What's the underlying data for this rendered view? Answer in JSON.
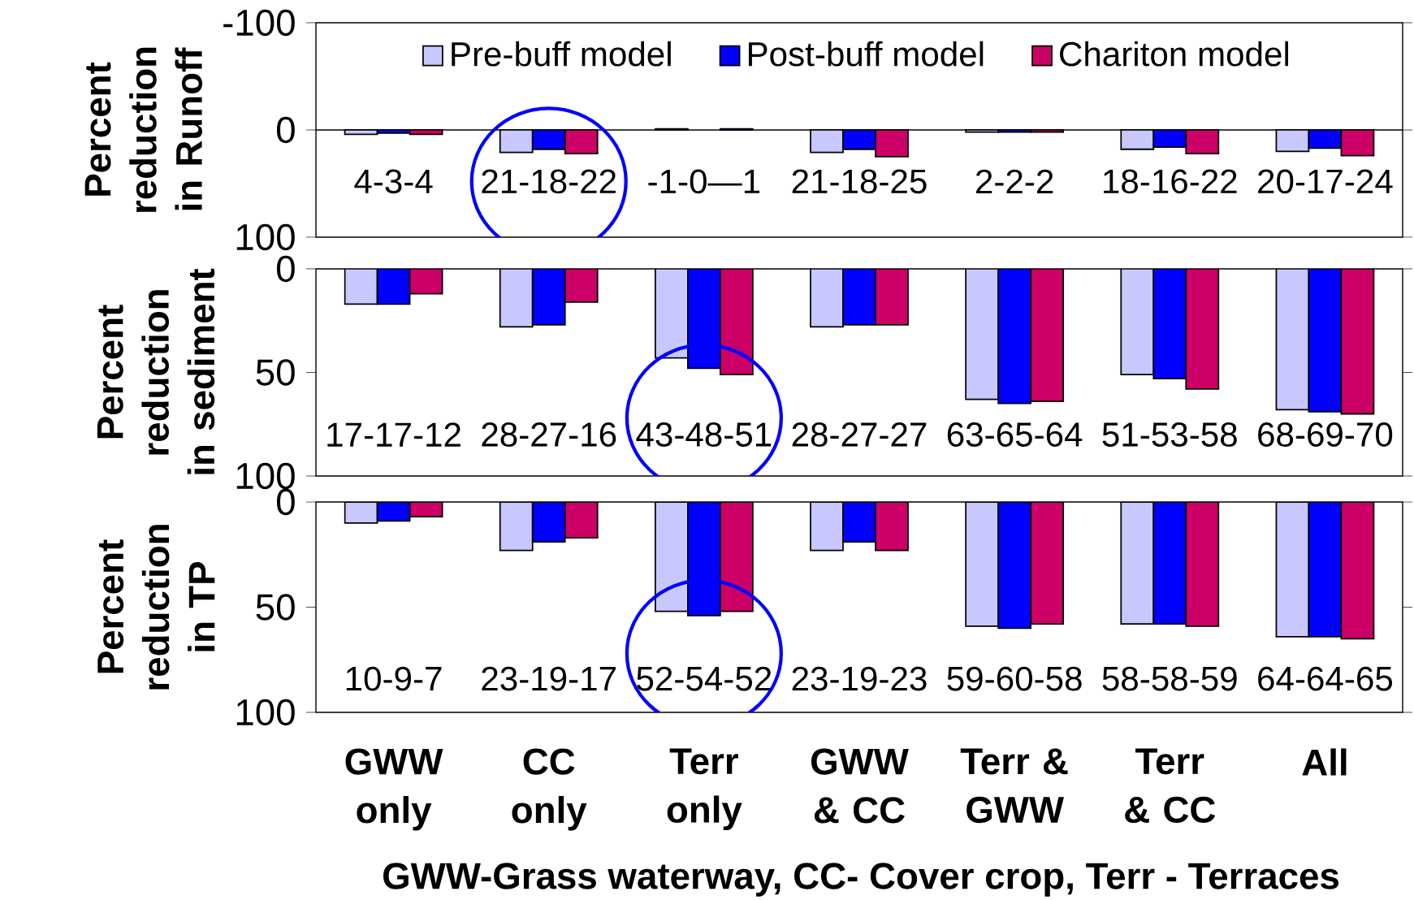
{
  "chart_data": [
    {
      "type": "bar",
      "categories": [
        null,
        null,
        null,
        null,
        null,
        null,
        null
      ],
      "ylabel": "Percent reduction in Runoff",
      "ylim": [
        100,
        -100
      ],
      "yticks": [
        -100,
        0,
        100
      ],
      "tick_labels": "y",
      "legend": "top",
      "series": [
        {
          "name": "Pre-buff model",
          "color": "#c8c8ff",
          "values": [
            4,
            21,
            -1,
            21,
            2,
            18,
            20
          ]
        },
        {
          "name": "Post-buff model",
          "color": "#0000ff",
          "values": [
            3,
            18,
            0,
            18,
            2,
            16,
            17
          ]
        },
        {
          "name": "Chariton model",
          "color": "#cc0066",
          "values": [
            4,
            22,
            -1,
            25,
            2,
            22,
            24
          ]
        }
      ],
      "annotations": [
        "4-3-4",
        "21-18-22",
        "-1-0—1",
        "21-18-25",
        "2-2-2",
        "18-16-22",
        "20-17-24"
      ]
    },
    {
      "type": "bar",
      "categories": [
        null,
        null,
        null,
        null,
        null,
        null,
        null
      ],
      "ylabel": "Percent reduction in sediment",
      "ylim": [
        100,
        0
      ],
      "yticks": [
        0,
        50,
        100
      ],
      "tick_labels": "y",
      "series": [
        {
          "color": "#c8c8ff",
          "values": [
            17,
            28,
            43,
            28,
            63,
            51,
            68
          ]
        },
        {
          "color": "#0000ff",
          "values": [
            17,
            27,
            48,
            27,
            65,
            53,
            69
          ]
        },
        {
          "color": "#cc0066",
          "values": [
            12,
            16,
            51,
            27,
            64,
            58,
            70
          ]
        }
      ],
      "annotations": [
        "17-17-12",
        "28-27-16",
        "43-48-51",
        "28-27-27",
        "63-65-64",
        "51-53-58",
        "68-69-70"
      ]
    },
    {
      "type": "bar",
      "categories": [
        "GWW only",
        "CC only",
        "Terr only",
        "GWW & CC",
        "Terr & GWW",
        "Terr & CC",
        "All"
      ],
      "ylabel": "Percent reduction in TP",
      "ylim": [
        100,
        0
      ],
      "yticks": [
        0,
        50,
        100
      ],
      "series": [
        {
          "color": "#c8c8ff",
          "values": [
            10,
            23,
            52,
            23,
            59,
            58,
            64
          ]
        },
        {
          "color": "#0000ff",
          "values": [
            9,
            19,
            54,
            19,
            60,
            58,
            64
          ]
        },
        {
          "color": "#cc0066",
          "values": [
            7,
            17,
            52,
            23,
            58,
            59,
            65
          ]
        }
      ],
      "annotations": [
        "10-9-7",
        "23-19-17",
        "52-54-52",
        "23-19-23",
        "59-60-58",
        "58-58-59",
        "64-64-65",
        "GWW-Grass waterway,  CC- Cover crop, Terr - Terraces"
      ]
    }
  ]
}
